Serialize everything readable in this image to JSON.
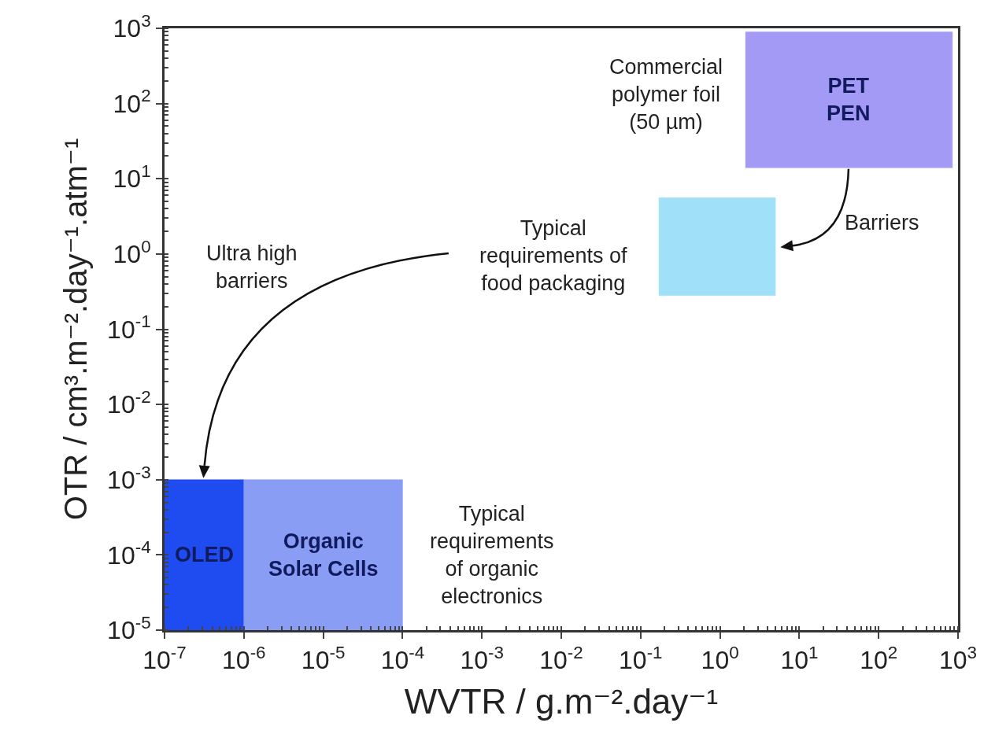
{
  "chart_data": {
    "type": "area",
    "xlabel": "WVTR / g.m⁻².day⁻¹",
    "ylabel": "OTR / cm³.m⁻².day⁻¹.atm⁻¹",
    "log": "xy",
    "xlim": [
      1e-07,
      1000
    ],
    "ylim": [
      1e-05,
      1000
    ],
    "xticks": [
      {
        "value": 1e-07,
        "label": "10$^{-7}$"
      },
      {
        "value": 1e-06,
        "label": "10$^{-6}$"
      },
      {
        "value": 1e-05,
        "label": "10$^{-5}$"
      },
      {
        "value": 0.0001,
        "label": "10$^{-4}$"
      },
      {
        "value": 0.001,
        "label": "10$^{-3}$"
      },
      {
        "value": 0.01,
        "label": "10$^{-2}$"
      },
      {
        "value": 0.1,
        "label": "10$^{-1}$"
      },
      {
        "value": 1,
        "label": "10$^{0}$"
      },
      {
        "value": 10,
        "label": "10$^{1}$"
      },
      {
        "value": 100,
        "label": "10$^{2}$"
      },
      {
        "value": 1000,
        "label": "10$^{3}$"
      }
    ],
    "yticks": [
      {
        "value": 1e-05,
        "label": "10$^{-5}$"
      },
      {
        "value": 0.0001,
        "label": "10$^{-4}$"
      },
      {
        "value": 0.001,
        "label": "10$^{-3}$"
      },
      {
        "value": 0.01,
        "label": "10$^{-2}$"
      },
      {
        "value": 0.1,
        "label": "10$^{-1}$"
      },
      {
        "value": 1,
        "label": "10$^{0}$"
      },
      {
        "value": 10,
        "label": "10$^{1}$"
      },
      {
        "value": 100,
        "label": "10$^{2}$"
      },
      {
        "value": 1000,
        "label": "10$^{3}$"
      }
    ],
    "grid": false,
    "legend": false,
    "marker": "none",
    "series": [
      {
        "name": "OLED",
        "color": "#1f4cf0",
        "x": [
          1e-07,
          1e-06,
          1e-06,
          1e-07,
          1e-07
        ],
        "values": [
          1e-05,
          1e-05,
          0.001,
          0.001,
          1e-05
        ]
      },
      {
        "name": "Organic\nSolar Cells",
        "color": "#8a9df4",
        "x": [
          1e-06,
          0.0001,
          0.0001,
          1e-06,
          1e-06
        ],
        "values": [
          1e-05,
          1e-05,
          0.001,
          0.001,
          1e-05
        ]
      },
      {
        "color": "#a0e0f8",
        "x": [
          0.17,
          5,
          5,
          0.17,
          0.17
        ],
        "values": [
          0.28,
          0.28,
          5.6,
          5.6,
          0.28
        ]
      },
      {
        "name": "PET\nPEN",
        "color": "#a39af6",
        "x": [
          2.1,
          850,
          850,
          2.1,
          2.1
        ],
        "values": [
          14,
          14,
          900,
          900,
          14
        ]
      }
    ],
    "annotations": [
      "Commercial\npolymer foil\n(50 µm)",
      "Typical\nrequirements of\nfood packaging",
      "Ultra high\nbarriers",
      "Barriers",
      "Typical\nrequirements\nof organic\nelectronics"
    ]
  }
}
